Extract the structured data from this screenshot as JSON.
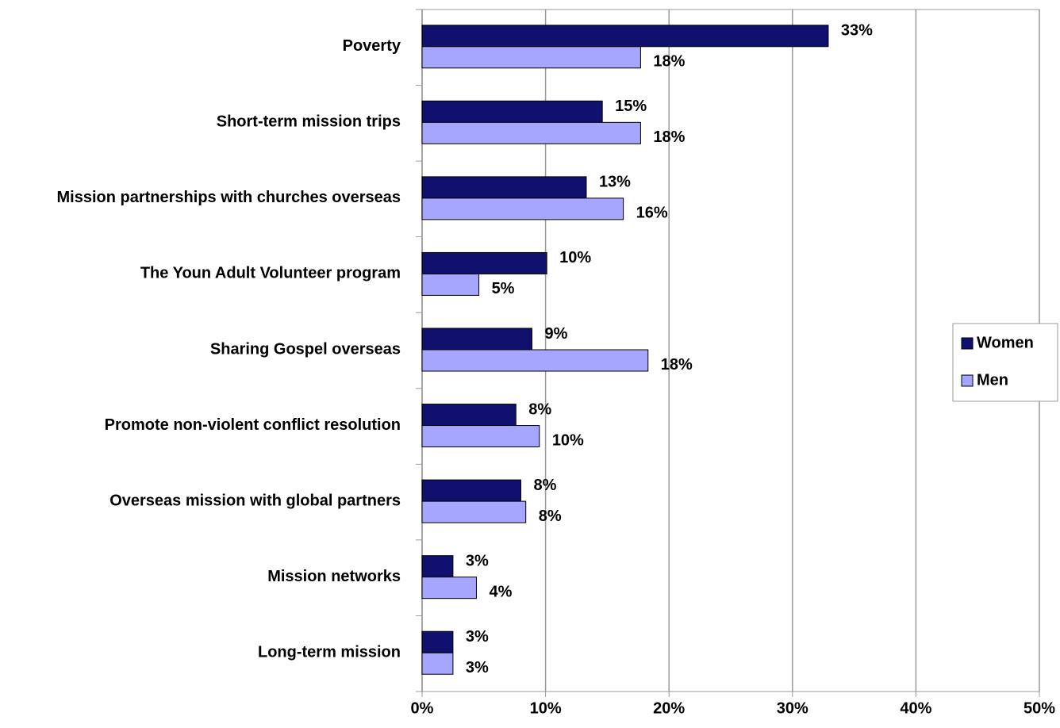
{
  "chart_data": {
    "type": "bar",
    "orientation": "horizontal",
    "categories": [
      "Poverty",
      "Short-term mission trips",
      "Mission partnerships with churches overseas",
      "The Youn Adult Volunteer program",
      "Sharing Gospel overseas",
      "Promote non-violent conflict resolution",
      "Overseas mission with global partners",
      "Mission networks",
      "Long-term mission"
    ],
    "series": [
      {
        "name": "Women",
        "color": "#10106e",
        "values": [
          32.9,
          14.6,
          13.3,
          10.1,
          8.9,
          7.6,
          8.0,
          2.5,
          2.5
        ],
        "value_labels": [
          "33%",
          "15%",
          "13%",
          "10%",
          "9%",
          "8%",
          "8%",
          "3%",
          "3%"
        ]
      },
      {
        "name": "Men",
        "color": "#a6a6ff",
        "values": [
          17.7,
          17.7,
          16.3,
          4.6,
          18.3,
          9.5,
          8.4,
          4.4,
          2.5
        ],
        "value_labels": [
          "18%",
          "18%",
          "16%",
          "5%",
          "18%",
          "10%",
          "8%",
          "4%",
          "3%"
        ]
      }
    ],
    "xlim": [
      0,
      50
    ],
    "xticks": [
      {
        "value": 0,
        "label": "0%"
      },
      {
        "value": 10,
        "label": "10%"
      },
      {
        "value": 20,
        "label": "20%"
      },
      {
        "value": 30,
        "label": "30%"
      },
      {
        "value": 40,
        "label": "40%"
      },
      {
        "value": 50,
        "label": "50%"
      }
    ],
    "grid": true,
    "legend": "right"
  }
}
